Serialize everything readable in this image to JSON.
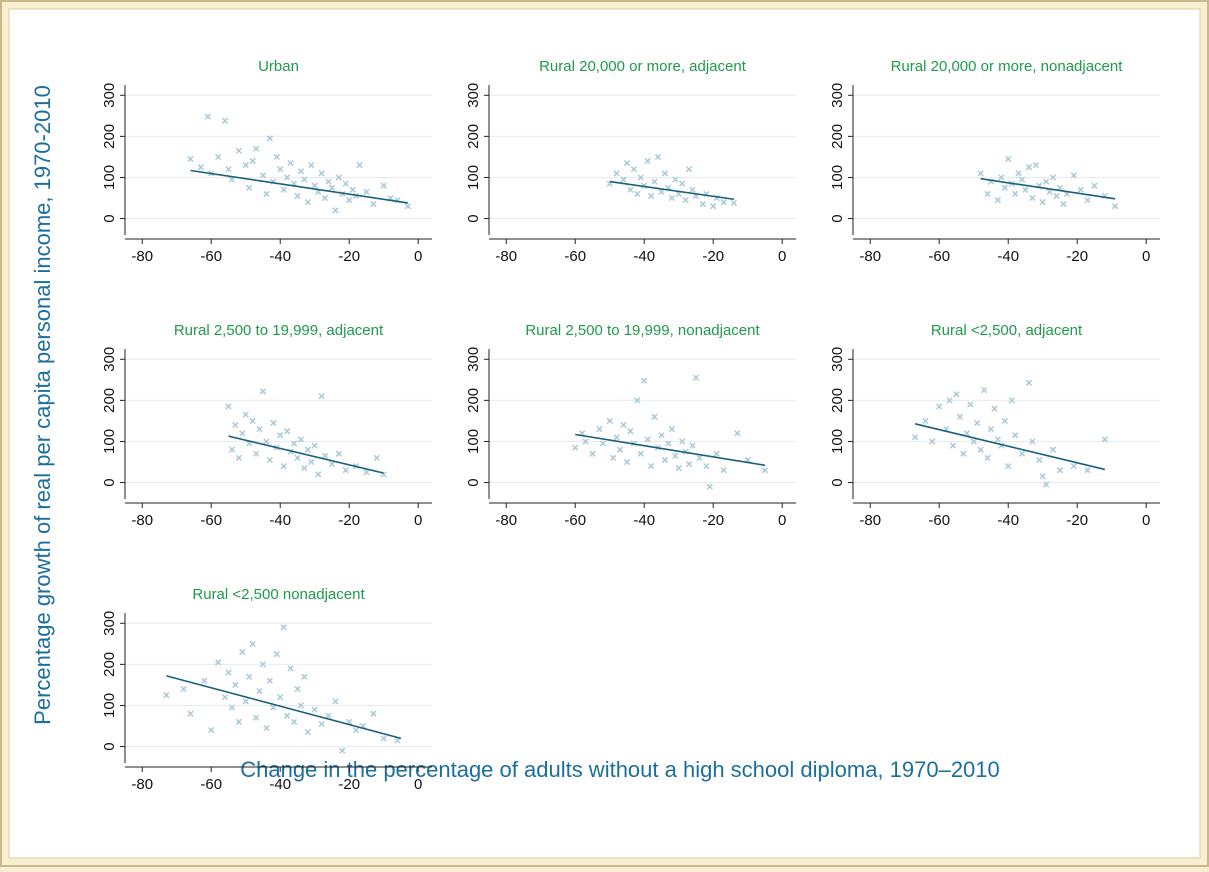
{
  "figure": {
    "xlabel": "Change in the percentage of adults without a high school diploma, 1970–2010",
    "ylabel": "Percentage growth of real per capita personal income, 1970-2010"
  },
  "chart_data": [
    {
      "type": "scatter",
      "title": "Urban",
      "color": "#a9c9d9",
      "grid": true,
      "xlim": [
        -85,
        4
      ],
      "ylim": [
        -40,
        325
      ],
      "xticks": [
        -80,
        -60,
        -40,
        -20,
        0
      ],
      "yticks": [
        0,
        100,
        200,
        300
      ],
      "x": [
        -66,
        -63,
        -61,
        -60,
        -58,
        -56,
        -55,
        -54,
        -52,
        -50,
        -49,
        -48,
        -47,
        -45,
        -44,
        -43,
        -42,
        -41,
        -40,
        -39,
        -38,
        -37,
        -36,
        -35,
        -34,
        -33,
        -32,
        -31,
        -30,
        -29,
        -28,
        -27,
        -26,
        -25,
        -24,
        -23,
        -22,
        -21,
        -20,
        -19,
        -18,
        -17,
        -15,
        -13,
        -10,
        -8,
        -6,
        -3
      ],
      "y": [
        145,
        125,
        248,
        110,
        150,
        238,
        120,
        95,
        165,
        130,
        75,
        140,
        170,
        105,
        60,
        195,
        90,
        150,
        120,
        70,
        100,
        135,
        85,
        55,
        115,
        95,
        40,
        130,
        80,
        65,
        110,
        50,
        90,
        75,
        20,
        100,
        60,
        85,
        45,
        70,
        55,
        130,
        65,
        35,
        80,
        50,
        45,
        30
      ],
      "fit": {
        "color": "#17607e",
        "x": [
          -66,
          -3
        ],
        "y": [
          117,
          38
        ]
      }
    },
    {
      "type": "scatter",
      "title": "Rural 20,000 or more, adjacent",
      "color": "#a9c9d9",
      "grid": true,
      "xlim": [
        -85,
        4
      ],
      "ylim": [
        -40,
        325
      ],
      "xticks": [
        -80,
        -60,
        -40,
        -20,
        0
      ],
      "yticks": [
        0,
        100,
        200,
        300
      ],
      "x": [
        -50,
        -48,
        -46,
        -45,
        -44,
        -43,
        -42,
        -41,
        -40,
        -39,
        -38,
        -37,
        -36,
        -35,
        -34,
        -33,
        -32,
        -31,
        -30,
        -29,
        -28,
        -27,
        -26,
        -25,
        -23,
        -22,
        -20,
        -19,
        -17,
        -14
      ],
      "y": [
        85,
        110,
        95,
        135,
        70,
        120,
        60,
        100,
        80,
        140,
        55,
        90,
        150,
        65,
        110,
        75,
        50,
        95,
        60,
        85,
        45,
        120,
        70,
        55,
        35,
        60,
        30,
        50,
        40,
        38
      ],
      "fit": {
        "color": "#17607e",
        "x": [
          -50,
          -14
        ],
        "y": [
          90,
          47
        ]
      }
    },
    {
      "type": "scatter",
      "title": "Rural 20,000 or more, nonadjacent",
      "color": "#a9c9d9",
      "grid": true,
      "xlim": [
        -85,
        4
      ],
      "ylim": [
        -40,
        325
      ],
      "xticks": [
        -80,
        -60,
        -40,
        -20,
        0
      ],
      "yticks": [
        0,
        100,
        200,
        300
      ],
      "x": [
        -48,
        -46,
        -45,
        -43,
        -42,
        -41,
        -40,
        -39,
        -38,
        -37,
        -36,
        -35,
        -34,
        -33,
        -32,
        -31,
        -30,
        -29,
        -28,
        -27,
        -26,
        -25,
        -24,
        -23,
        -21,
        -19,
        -17,
        -15,
        -12,
        -9
      ],
      "y": [
        110,
        60,
        90,
        45,
        100,
        75,
        145,
        85,
        60,
        110,
        95,
        70,
        125,
        50,
        130,
        80,
        40,
        90,
        65,
        100,
        55,
        75,
        35,
        60,
        105,
        70,
        45,
        80,
        55,
        30
      ],
      "fit": {
        "color": "#17607e",
        "x": [
          -48,
          -9
        ],
        "y": [
          97,
          48
        ]
      }
    },
    {
      "type": "scatter",
      "title": "Rural 2,500 to 19,999, adjacent",
      "color": "#a9c9d9",
      "grid": true,
      "xlim": [
        -85,
        4
      ],
      "ylim": [
        -40,
        325
      ],
      "xticks": [
        -80,
        -60,
        -40,
        -20,
        0
      ],
      "yticks": [
        0,
        100,
        200,
        300
      ],
      "x": [
        -55,
        -54,
        -53,
        -52,
        -51,
        -50,
        -49,
        -48,
        -47,
        -46,
        -45,
        -44,
        -43,
        -42,
        -41,
        -40,
        -39,
        -38,
        -37,
        -36,
        -35,
        -34,
        -33,
        -32,
        -31,
        -30,
        -29,
        -28,
        -27,
        -25,
        -23,
        -21,
        -18,
        -15,
        -12,
        -10
      ],
      "y": [
        185,
        80,
        140,
        60,
        120,
        165,
        95,
        150,
        70,
        130,
        222,
        100,
        55,
        145,
        85,
        115,
        40,
        125,
        75,
        95,
        60,
        105,
        35,
        80,
        50,
        90,
        20,
        210,
        65,
        45,
        70,
        30,
        40,
        25,
        60,
        20
      ],
      "fit": {
        "color": "#17607e",
        "x": [
          -55,
          -10
        ],
        "y": [
          113,
          23
        ]
      }
    },
    {
      "type": "scatter",
      "title": "Rural 2,500 to 19,999, nonadjacent",
      "color": "#a9c9d9",
      "grid": true,
      "xlim": [
        -85,
        4
      ],
      "ylim": [
        -40,
        325
      ],
      "xticks": [
        -80,
        -60,
        -40,
        -20,
        0
      ],
      "yticks": [
        0,
        100,
        200,
        300
      ],
      "x": [
        -60,
        -58,
        -57,
        -55,
        -53,
        -52,
        -50,
        -49,
        -48,
        -47,
        -46,
        -45,
        -44,
        -43,
        -42,
        -41,
        -40,
        -39,
        -38,
        -37,
        -36,
        -35,
        -34,
        -33,
        -32,
        -31,
        -30,
        -29,
        -28,
        -27,
        -26,
        -25,
        -24,
        -22,
        -21,
        -19,
        -17,
        -13,
        -10,
        -5
      ],
      "y": [
        85,
        120,
        100,
        70,
        130,
        95,
        150,
        60,
        110,
        80,
        140,
        50,
        125,
        95,
        200,
        70,
        248,
        105,
        40,
        160,
        85,
        115,
        55,
        95,
        130,
        65,
        35,
        100,
        75,
        45,
        90,
        255,
        60,
        40,
        -10,
        70,
        30,
        120,
        55,
        30
      ],
      "fit": {
        "color": "#17607e",
        "x": [
          -60,
          -5
        ],
        "y": [
          117,
          42
        ]
      }
    },
    {
      "type": "scatter",
      "title": "Rural <2,500, adjacent",
      "color": "#a9c9d9",
      "grid": true,
      "xlim": [
        -85,
        4
      ],
      "ylim": [
        -40,
        325
      ],
      "xticks": [
        -80,
        -60,
        -40,
        -20,
        0
      ],
      "yticks": [
        0,
        100,
        200,
        300
      ],
      "x": [
        -67,
        -64,
        -62,
        -60,
        -58,
        -57,
        -56,
        -55,
        -54,
        -53,
        -52,
        -51,
        -50,
        -49,
        -48,
        -47,
        -46,
        -45,
        -44,
        -43,
        -42,
        -41,
        -40,
        -39,
        -38,
        -36,
        -34,
        -33,
        -31,
        -30,
        -29,
        -27,
        -25,
        -21,
        -17,
        -12
      ],
      "y": [
        110,
        150,
        100,
        185,
        130,
        200,
        90,
        215,
        160,
        70,
        120,
        190,
        100,
        145,
        80,
        225,
        60,
        130,
        180,
        105,
        90,
        150,
        40,
        200,
        115,
        70,
        243,
        100,
        55,
        15,
        -5,
        80,
        30,
        40,
        30,
        105
      ],
      "fit": {
        "color": "#17607e",
        "x": [
          -67,
          -12
        ],
        "y": [
          143,
          32
        ]
      }
    },
    {
      "type": "scatter",
      "title": "Rural <2,500 nonadjacent",
      "color": "#a9c9d9",
      "grid": true,
      "xlim": [
        -85,
        4
      ],
      "ylim": [
        -40,
        325
      ],
      "xticks": [
        -80,
        -60,
        -40,
        -20,
        0
      ],
      "yticks": [
        0,
        100,
        200,
        300
      ],
      "x": [
        -73,
        -68,
        -66,
        -62,
        -60,
        -58,
        -56,
        -55,
        -54,
        -53,
        -52,
        -51,
        -50,
        -49,
        -48,
        -47,
        -46,
        -45,
        -44,
        -43,
        -42,
        -41,
        -40,
        -39,
        -38,
        -37,
        -36,
        -35,
        -34,
        -33,
        -32,
        -30,
        -28,
        -26,
        -24,
        -22,
        -20,
        -18,
        -16,
        -13,
        -10,
        -6
      ],
      "y": [
        125,
        140,
        80,
        160,
        40,
        205,
        120,
        180,
        95,
        150,
        60,
        230,
        110,
        170,
        250,
        70,
        135,
        200,
        45,
        160,
        95,
        225,
        120,
        290,
        75,
        190,
        60,
        140,
        100,
        170,
        35,
        90,
        55,
        75,
        110,
        -10,
        60,
        40,
        50,
        80,
        20,
        15
      ],
      "fit": {
        "color": "#17607e",
        "x": [
          -73,
          -5
        ],
        "y": [
          172,
          20
        ]
      }
    }
  ]
}
